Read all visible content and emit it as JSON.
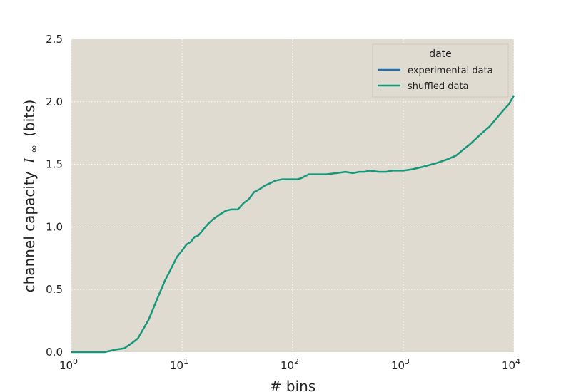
{
  "chart_data": {
    "type": "line",
    "xlabel": "# bins",
    "ylabel_text": "channel capacity",
    "ylabel_symbol": "I",
    "ylabel_subscript": "∞",
    "ylabel_unit": "(bits)",
    "xscale": "log",
    "xlim": [
      1,
      10000
    ],
    "ylim": [
      0,
      2.5
    ],
    "x_tick_base": "10",
    "x_tick_exponents": [
      "0",
      "1",
      "2",
      "3",
      "4"
    ],
    "y_ticks": [
      "0.0",
      "0.5",
      "1.0",
      "1.5",
      "2.0",
      "2.5"
    ],
    "grid": true,
    "legend": {
      "title": "date",
      "position": "top-right"
    },
    "colors": {
      "background": "#e0dbd0",
      "grid": "#ffffff"
    },
    "series": [
      {
        "name": "experimental data",
        "color": "#1f6fb2",
        "x": [
          1,
          10000
        ],
        "y": [
          0,
          2.05
        ],
        "visible": false
      },
      {
        "name": "shuffled data",
        "color": "#16967a",
        "x": [
          1,
          1.5,
          2,
          2.5,
          3,
          3.5,
          4,
          5,
          6,
          7,
          8,
          9,
          10,
          11,
          12,
          13,
          14,
          15,
          17,
          19,
          22,
          25,
          28,
          32,
          36,
          40,
          45,
          50,
          56,
          63,
          70,
          80,
          90,
          100,
          110,
          120,
          140,
          160,
          180,
          200,
          250,
          300,
          350,
          400,
          450,
          500,
          600,
          700,
          800,
          900,
          1000,
          1200,
          1500,
          2000,
          2500,
          3000,
          3500,
          4000,
          5000,
          6000,
          7000,
          8000,
          9000,
          10000
        ],
        "y": [
          0,
          0,
          0,
          0.02,
          0.03,
          0.07,
          0.11,
          0.26,
          0.43,
          0.57,
          0.67,
          0.76,
          0.81,
          0.86,
          0.88,
          0.92,
          0.93,
          0.96,
          1.02,
          1.06,
          1.1,
          1.13,
          1.14,
          1.14,
          1.19,
          1.22,
          1.28,
          1.3,
          1.33,
          1.35,
          1.37,
          1.38,
          1.38,
          1.38,
          1.38,
          1.39,
          1.42,
          1.42,
          1.42,
          1.42,
          1.43,
          1.44,
          1.43,
          1.44,
          1.44,
          1.45,
          1.44,
          1.44,
          1.45,
          1.45,
          1.45,
          1.46,
          1.48,
          1.51,
          1.54,
          1.57,
          1.62,
          1.66,
          1.74,
          1.8,
          1.87,
          1.93,
          1.98,
          2.05
        ]
      }
    ]
  }
}
